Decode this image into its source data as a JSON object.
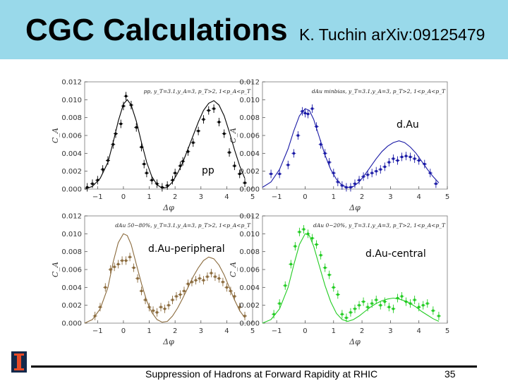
{
  "slide": {
    "title": "CGC Calculations",
    "subtitle": "K. Tuchin arXiv:09125479",
    "footer": "Suppression of Hadrons at Forward Rapidity at RHIC",
    "page_number": "35"
  },
  "colors": {
    "banner": "#99d9ea",
    "pp": "#000000",
    "dau": "#1a1aa6",
    "peripheral": "#8a6a3c",
    "central": "#22cc22"
  },
  "chart_data": [
    {
      "type": "scatter",
      "name": "pp-panel",
      "caption": "pp, y_T=3.1,y_A=3, p_T>2, 1<p_A<p_T",
      "label": "pp",
      "xlabel": "Δφ",
      "ylabel": "C_A",
      "xlim": [
        -1.5,
        5
      ],
      "ylim": [
        0,
        0.012
      ],
      "xticks": [
        -1,
        0,
        1,
        2,
        3,
        4,
        5
      ],
      "yticks": [
        "0.000",
        "0.002",
        "0.004",
        "0.006",
        "0.008",
        "0.010",
        "0.012"
      ],
      "x": [
        -1.4,
        -1.2,
        -1.0,
        -0.8,
        -0.6,
        -0.4,
        -0.3,
        -0.1,
        0.0,
        0.1,
        0.3,
        0.5,
        0.7,
        0.8,
        0.9,
        1.1,
        1.3,
        1.5,
        1.7,
        1.9,
        2.0,
        2.2,
        2.3,
        2.5,
        2.7,
        2.9,
        3.1,
        3.3,
        3.5,
        3.7,
        3.9,
        4.1,
        4.3,
        4.5,
        4.7
      ],
      "y": [
        0.0002,
        0.0006,
        0.001,
        0.0022,
        0.0032,
        0.005,
        0.0062,
        0.0073,
        0.0093,
        0.0104,
        0.0094,
        0.0069,
        0.0047,
        0.0028,
        0.0018,
        0.001,
        0.0006,
        0.0002,
        0.0004,
        0.001,
        0.0018,
        0.0026,
        0.0031,
        0.0042,
        0.0052,
        0.0065,
        0.0078,
        0.0088,
        0.009,
        0.0075,
        0.0062,
        0.0041,
        0.0026,
        0.0017,
        0.0007
      ],
      "curve_x": [
        -1.5,
        -1.2,
        -0.9,
        -0.6,
        -0.4,
        -0.2,
        0.0,
        0.15,
        0.3,
        0.5,
        0.7,
        0.9,
        1.1,
        1.3,
        1.5,
        1.7,
        1.9,
        2.1,
        2.3,
        2.5,
        2.7,
        2.9,
        3.1,
        3.3,
        3.5,
        3.7,
        3.9,
        4.1,
        4.3,
        4.5,
        4.7
      ],
      "curve_y": [
        0.0,
        0.0003,
        0.0012,
        0.003,
        0.0052,
        0.0076,
        0.0095,
        0.01,
        0.0094,
        0.0076,
        0.0052,
        0.003,
        0.0014,
        0.0005,
        0.0001,
        0.0002,
        0.0008,
        0.0018,
        0.003,
        0.0045,
        0.006,
        0.0075,
        0.0088,
        0.0096,
        0.0099,
        0.0094,
        0.0082,
        0.0064,
        0.0044,
        0.0026,
        0.0012
      ]
    },
    {
      "type": "scatter",
      "name": "dau-panel",
      "caption": "dAu minbias, y_T=3.1,y_A=3, p_T>2, 1<p_A<p_T",
      "label": "d.Au",
      "xlabel": "Δφ",
      "ylabel": "C_A",
      "xlim": [
        -1.5,
        5
      ],
      "ylim": [
        0,
        0.012
      ],
      "xticks": [
        -1,
        0,
        1,
        2,
        3,
        4,
        5
      ],
      "yticks": [
        "0.000",
        "0.002",
        "0.004",
        "0.006",
        "0.008",
        "0.010",
        "0.012"
      ],
      "x": [
        -1.2,
        -0.9,
        -0.6,
        -0.4,
        -0.25,
        -0.1,
        0.0,
        0.1,
        0.25,
        0.4,
        0.55,
        0.7,
        0.85,
        1.0,
        1.15,
        1.3,
        1.45,
        1.6,
        1.75,
        1.9,
        2.05,
        2.2,
        2.35,
        2.5,
        2.65,
        2.8,
        2.95,
        3.1,
        3.25,
        3.4,
        3.55,
        3.7,
        3.85,
        4.0,
        4.2,
        4.4,
        4.6
      ],
      "y": [
        0.0017,
        0.0017,
        0.0027,
        0.004,
        0.006,
        0.0087,
        0.0085,
        0.0084,
        0.009,
        0.007,
        0.005,
        0.004,
        0.003,
        0.0018,
        0.0008,
        0.0004,
        0.0002,
        0.0002,
        0.0006,
        0.001,
        0.0014,
        0.0016,
        0.0018,
        0.002,
        0.0022,
        0.0025,
        0.003,
        0.0034,
        0.0032,
        0.0036,
        0.0037,
        0.0036,
        0.0034,
        0.0032,
        0.0028,
        0.0018,
        0.0006
      ],
      "curve_x": [
        -1.5,
        -1.2,
        -0.9,
        -0.6,
        -0.4,
        -0.2,
        0.0,
        0.15,
        0.3,
        0.5,
        0.7,
        0.9,
        1.1,
        1.3,
        1.5,
        1.7,
        1.9,
        2.1,
        2.3,
        2.5,
        2.7,
        2.9,
        3.1,
        3.3,
        3.5,
        3.7,
        3.9,
        4.1,
        4.3,
        4.5,
        4.7
      ],
      "curve_y": [
        0.0002,
        0.0008,
        0.0022,
        0.0045,
        0.0065,
        0.0082,
        0.009,
        0.0088,
        0.0078,
        0.0058,
        0.0038,
        0.0022,
        0.0011,
        0.0004,
        0.0002,
        0.0003,
        0.0008,
        0.0016,
        0.0025,
        0.0034,
        0.0042,
        0.0048,
        0.0052,
        0.0054,
        0.0052,
        0.0047,
        0.004,
        0.0031,
        0.0022,
        0.0014,
        0.0007
      ]
    },
    {
      "type": "scatter",
      "name": "peripheral-panel",
      "caption": "dAu 50−80%, y_T=3.1,y_A=3, p_T>2, 1<p_A<p_T",
      "label": "d.Au-peripheral",
      "xlabel": "Δφ",
      "ylabel": "C_A",
      "xlim": [
        -1.5,
        5
      ],
      "ylim": [
        0,
        0.012
      ],
      "xticks": [
        -1,
        0,
        1,
        2,
        3,
        4,
        5
      ],
      "yticks": [
        "0.000",
        "0.002",
        "0.004",
        "0.006",
        "0.008",
        "0.010",
        "0.012"
      ],
      "x": [
        -1.1,
        -0.9,
        -0.7,
        -0.5,
        -0.35,
        -0.2,
        -0.05,
        0.1,
        0.25,
        0.4,
        0.55,
        0.7,
        0.85,
        1.0,
        1.15,
        1.3,
        1.45,
        1.6,
        1.75,
        1.9,
        2.05,
        2.2,
        2.35,
        2.5,
        2.65,
        2.8,
        2.95,
        3.1,
        3.25,
        3.4,
        3.55,
        3.7,
        3.85,
        4.0,
        4.15,
        4.3,
        4.5,
        4.7
      ],
      "y": [
        0.0008,
        0.0018,
        0.004,
        0.006,
        0.0063,
        0.0066,
        0.007,
        0.007,
        0.0074,
        0.0062,
        0.005,
        0.0036,
        0.0026,
        0.0018,
        0.0014,
        0.0012,
        0.0018,
        0.0016,
        0.002,
        0.0026,
        0.003,
        0.0032,
        0.0036,
        0.0044,
        0.0046,
        0.0048,
        0.005,
        0.0048,
        0.0052,
        0.0056,
        0.0052,
        0.005,
        0.0046,
        0.004,
        0.0036,
        0.003,
        0.0018,
        0.0008
      ],
      "curve_x": [
        -1.5,
        -1.2,
        -0.9,
        -0.6,
        -0.4,
        -0.2,
        0.0,
        0.15,
        0.3,
        0.5,
        0.7,
        0.9,
        1.1,
        1.3,
        1.5,
        1.7,
        1.9,
        2.1,
        2.3,
        2.5,
        2.7,
        2.9,
        3.1,
        3.3,
        3.5,
        3.7,
        3.9,
        4.1,
        4.3,
        4.5,
        4.7
      ],
      "curve_y": [
        0.0,
        0.0004,
        0.0016,
        0.004,
        0.0068,
        0.009,
        0.01,
        0.0098,
        0.0088,
        0.0066,
        0.0044,
        0.0025,
        0.0012,
        0.0004,
        0.0001,
        0.0002,
        0.0008,
        0.0017,
        0.0028,
        0.004,
        0.0052,
        0.0062,
        0.007,
        0.0074,
        0.0072,
        0.0065,
        0.0054,
        0.004,
        0.0026,
        0.0014,
        0.0006
      ]
    },
    {
      "type": "scatter",
      "name": "central-panel",
      "caption": "dAu 0−20%, y_T=3.1,y_A=3, p_T>2, 1<p_A<p_T",
      "label": "d.Au-central",
      "xlabel": "Δφ",
      "ylabel": "C_A",
      "xlim": [
        -1.5,
        5
      ],
      "ylim": [
        0,
        0.012
      ],
      "xticks": [
        -1,
        0,
        1,
        2,
        3,
        4,
        5
      ],
      "yticks": [
        "0.000",
        "0.002",
        "0.004",
        "0.006",
        "0.008",
        "0.010",
        "0.012"
      ],
      "x": [
        -1.1,
        -0.9,
        -0.7,
        -0.5,
        -0.35,
        -0.2,
        -0.05,
        0.1,
        0.25,
        0.4,
        0.55,
        0.7,
        0.85,
        1.0,
        1.15,
        1.3,
        1.45,
        1.6,
        1.75,
        1.9,
        2.05,
        2.2,
        2.35,
        2.5,
        2.65,
        2.8,
        2.95,
        3.1,
        3.25,
        3.4,
        3.55,
        3.7,
        3.85,
        4.0,
        4.15,
        4.3,
        4.5,
        4.7
      ],
      "y": [
        0.001,
        0.0022,
        0.0042,
        0.0066,
        0.0086,
        0.0102,
        0.0105,
        0.01,
        0.0095,
        0.0088,
        0.0076,
        0.0062,
        0.0054,
        0.004,
        0.0032,
        0.001,
        0.0006,
        0.0012,
        0.0016,
        0.002,
        0.0024,
        0.0018,
        0.0022,
        0.0026,
        0.002,
        0.0024,
        0.0018,
        0.0016,
        0.0028,
        0.003,
        0.0024,
        0.0022,
        0.0026,
        0.0018,
        0.002,
        0.0022,
        0.0014,
        0.0008
      ],
      "curve_x": [
        -1.5,
        -1.2,
        -0.9,
        -0.6,
        -0.4,
        -0.2,
        0.0,
        0.15,
        0.3,
        0.5,
        0.7,
        0.9,
        1.1,
        1.3,
        1.5,
        1.7,
        1.9,
        2.1,
        2.3,
        2.5,
        2.7,
        2.9,
        3.1,
        3.3,
        3.5,
        3.7,
        3.9,
        4.1,
        4.3,
        4.5,
        4.7
      ],
      "curve_y": [
        0.0,
        0.0004,
        0.0016,
        0.004,
        0.0065,
        0.0088,
        0.01,
        0.0098,
        0.0086,
        0.0064,
        0.0042,
        0.0024,
        0.0011,
        0.0004,
        0.0002,
        0.0004,
        0.0008,
        0.0013,
        0.0018,
        0.0022,
        0.0025,
        0.0027,
        0.0028,
        0.0027,
        0.0025,
        0.0022,
        0.0018,
        0.0013,
        0.0009,
        0.0005,
        0.0002
      ]
    }
  ]
}
